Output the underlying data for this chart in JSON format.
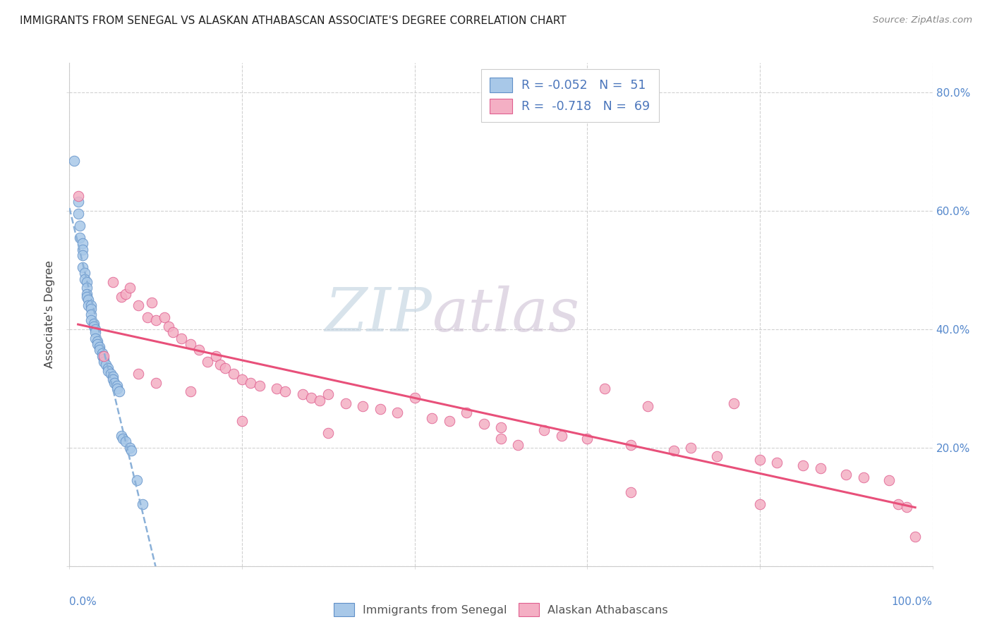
{
  "title": "IMMIGRANTS FROM SENEGAL VS ALASKAN ATHABASCAN ASSOCIATE'S DEGREE CORRELATION CHART",
  "source": "Source: ZipAtlas.com",
  "ylabel": "Associate's Degree",
  "xlim": [
    0,
    1.0
  ],
  "ylim": [
    0,
    0.85
  ],
  "yticks": [
    0.0,
    0.2,
    0.4,
    0.6,
    0.8
  ],
  "ytick_labels_right": [
    "",
    "20.0%",
    "40.0%",
    "60.0%",
    "80.0%"
  ],
  "color_blue": "#a8c8e8",
  "color_pink": "#f4afc4",
  "edge_blue": "#6090c8",
  "edge_pink": "#e06090",
  "line_blue_color": "#8ab0d8",
  "line_pink_color": "#e8507a",
  "watermark_zip_color": "#b0c8e0",
  "watermark_atlas_color": "#c8b0d0",
  "senegal_x": [
    0.005,
    0.01,
    0.01,
    0.012,
    0.012,
    0.015,
    0.015,
    0.015,
    0.015,
    0.018,
    0.018,
    0.02,
    0.02,
    0.02,
    0.02,
    0.022,
    0.022,
    0.025,
    0.025,
    0.025,
    0.025,
    0.028,
    0.028,
    0.03,
    0.03,
    0.03,
    0.032,
    0.032,
    0.035,
    0.035,
    0.038,
    0.038,
    0.04,
    0.04,
    0.042,
    0.045,
    0.045,
    0.048,
    0.05,
    0.05,
    0.052,
    0.055,
    0.055,
    0.058,
    0.06,
    0.062,
    0.065,
    0.07,
    0.072,
    0.078,
    0.085
  ],
  "senegal_y": [
    0.685,
    0.615,
    0.595,
    0.575,
    0.555,
    0.545,
    0.535,
    0.525,
    0.505,
    0.495,
    0.485,
    0.48,
    0.47,
    0.46,
    0.455,
    0.45,
    0.44,
    0.44,
    0.435,
    0.425,
    0.415,
    0.41,
    0.405,
    0.4,
    0.395,
    0.385,
    0.38,
    0.375,
    0.37,
    0.365,
    0.36,
    0.355,
    0.35,
    0.345,
    0.34,
    0.335,
    0.33,
    0.325,
    0.32,
    0.315,
    0.31,
    0.305,
    0.3,
    0.295,
    0.22,
    0.215,
    0.21,
    0.2,
    0.195,
    0.145,
    0.105
  ],
  "athabascan_x": [
    0.01,
    0.05,
    0.06,
    0.065,
    0.07,
    0.08,
    0.09,
    0.095,
    0.1,
    0.11,
    0.115,
    0.12,
    0.13,
    0.14,
    0.15,
    0.16,
    0.17,
    0.175,
    0.18,
    0.19,
    0.2,
    0.21,
    0.22,
    0.24,
    0.25,
    0.27,
    0.28,
    0.29,
    0.3,
    0.32,
    0.34,
    0.36,
    0.38,
    0.4,
    0.42,
    0.44,
    0.46,
    0.48,
    0.5,
    0.52,
    0.55,
    0.57,
    0.6,
    0.62,
    0.65,
    0.67,
    0.7,
    0.72,
    0.75,
    0.77,
    0.8,
    0.82,
    0.85,
    0.87,
    0.9,
    0.92,
    0.95,
    0.96,
    0.97,
    0.98,
    0.04,
    0.08,
    0.1,
    0.14,
    0.2,
    0.3,
    0.5,
    0.65,
    0.8
  ],
  "athabascan_y": [
    0.625,
    0.48,
    0.455,
    0.46,
    0.47,
    0.44,
    0.42,
    0.445,
    0.415,
    0.42,
    0.405,
    0.395,
    0.385,
    0.375,
    0.365,
    0.345,
    0.355,
    0.34,
    0.335,
    0.325,
    0.315,
    0.31,
    0.305,
    0.3,
    0.295,
    0.29,
    0.285,
    0.28,
    0.29,
    0.275,
    0.27,
    0.265,
    0.26,
    0.285,
    0.25,
    0.245,
    0.26,
    0.24,
    0.235,
    0.205,
    0.23,
    0.22,
    0.215,
    0.3,
    0.205,
    0.27,
    0.195,
    0.2,
    0.185,
    0.275,
    0.18,
    0.175,
    0.17,
    0.165,
    0.155,
    0.15,
    0.145,
    0.105,
    0.1,
    0.05,
    0.355,
    0.325,
    0.31,
    0.295,
    0.245,
    0.225,
    0.215,
    0.125,
    0.105
  ]
}
